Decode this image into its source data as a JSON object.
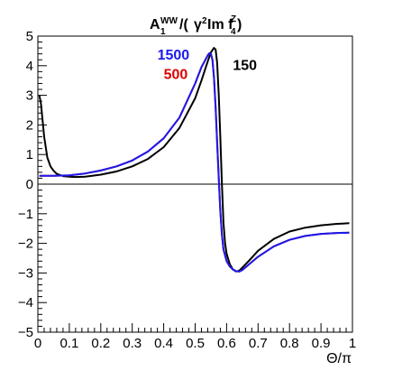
{
  "chart_data": {
    "type": "line",
    "title": {
      "A": "A",
      "A_sub": "1",
      "A_sup": "WW",
      "open": "/(",
      "gamma": "γ",
      "gamma_sup": "2",
      "im": " Im f",
      "f_sup": "Z",
      "f_sub": "4",
      "close": ")"
    },
    "xlabel": "Θ/π",
    "ylabel": "",
    "xlim": [
      0,
      1
    ],
    "ylim": [
      -5,
      5
    ],
    "x_ticks": [
      "0",
      "0.1",
      "0.2",
      "0.3",
      "0.4",
      "0.5",
      "0.6",
      "0.7",
      "0.8",
      "0.9",
      "1"
    ],
    "y_ticks": [
      "5",
      "4",
      "3",
      "2",
      "1",
      "0",
      "−1",
      "−2",
      "−3",
      "−4",
      "−5"
    ],
    "zero_line": true,
    "series": [
      {
        "name": "150",
        "color": "#000000",
        "x": [
          0.005,
          0.01,
          0.02,
          0.03,
          0.04,
          0.05,
          0.06,
          0.08,
          0.1,
          0.12,
          0.15,
          0.2,
          0.25,
          0.3,
          0.35,
          0.4,
          0.45,
          0.5,
          0.52,
          0.54,
          0.55,
          0.56,
          0.565,
          0.57,
          0.575,
          0.58,
          0.585,
          0.59,
          0.595,
          0.6,
          0.61,
          0.62,
          0.63,
          0.64,
          0.65,
          0.67,
          0.7,
          0.75,
          0.8,
          0.85,
          0.9,
          0.95,
          0.99
        ],
        "y": [
          3.0,
          2.7,
          1.6,
          0.9,
          0.6,
          0.45,
          0.35,
          0.27,
          0.25,
          0.24,
          0.25,
          0.32,
          0.43,
          0.6,
          0.85,
          1.25,
          1.9,
          2.9,
          3.5,
          4.15,
          4.45,
          4.6,
          4.55,
          4.1,
          3.0,
          1.6,
          0.0,
          -1.3,
          -2.0,
          -2.35,
          -2.7,
          -2.88,
          -2.95,
          -2.92,
          -2.82,
          -2.6,
          -2.25,
          -1.85,
          -1.6,
          -1.47,
          -1.39,
          -1.34,
          -1.32
        ]
      },
      {
        "name": "500",
        "color": "#dd0000",
        "x": [
          0.005,
          0.05,
          0.1,
          0.15,
          0.2,
          0.25,
          0.3,
          0.35,
          0.4,
          0.45,
          0.5,
          0.52,
          0.54,
          0.545,
          0.55,
          0.555,
          0.56,
          0.565,
          0.57,
          0.575,
          0.58,
          0.585,
          0.59,
          0.6,
          0.61,
          0.62,
          0.63,
          0.64,
          0.65,
          0.67,
          0.7,
          0.75,
          0.8,
          0.85,
          0.9,
          0.95,
          0.99
        ],
        "y": [
          0.28,
          0.28,
          0.3,
          0.36,
          0.46,
          0.6,
          0.8,
          1.1,
          1.55,
          2.25,
          3.4,
          3.95,
          4.35,
          4.42,
          4.4,
          4.2,
          3.6,
          2.6,
          1.4,
          0.2,
          -0.9,
          -1.7,
          -2.2,
          -2.6,
          -2.78,
          -2.88,
          -2.94,
          -2.95,
          -2.9,
          -2.72,
          -2.45,
          -2.1,
          -1.88,
          -1.75,
          -1.68,
          -1.65,
          -1.64
        ]
      },
      {
        "name": "1500",
        "color": "#1a1aee",
        "x": [
          0.005,
          0.05,
          0.1,
          0.15,
          0.2,
          0.25,
          0.3,
          0.35,
          0.4,
          0.45,
          0.5,
          0.52,
          0.54,
          0.545,
          0.55,
          0.555,
          0.56,
          0.565,
          0.57,
          0.575,
          0.58,
          0.585,
          0.59,
          0.6,
          0.61,
          0.62,
          0.63,
          0.64,
          0.65,
          0.67,
          0.7,
          0.75,
          0.8,
          0.85,
          0.9,
          0.95,
          0.99
        ],
        "y": [
          0.28,
          0.28,
          0.3,
          0.36,
          0.46,
          0.6,
          0.8,
          1.1,
          1.55,
          2.25,
          3.4,
          3.95,
          4.35,
          4.42,
          4.4,
          4.2,
          3.6,
          2.6,
          1.4,
          0.2,
          -0.9,
          -1.7,
          -2.2,
          -2.6,
          -2.78,
          -2.88,
          -2.94,
          -2.95,
          -2.9,
          -2.72,
          -2.45,
          -2.1,
          -1.88,
          -1.75,
          -1.68,
          -1.65,
          -1.64
        ]
      }
    ],
    "legend": [
      {
        "label": "1500",
        "color": "#1a1aee"
      },
      {
        "label": "500",
        "color": "#dd0000"
      },
      {
        "label": "150",
        "color": "#000000"
      }
    ]
  }
}
